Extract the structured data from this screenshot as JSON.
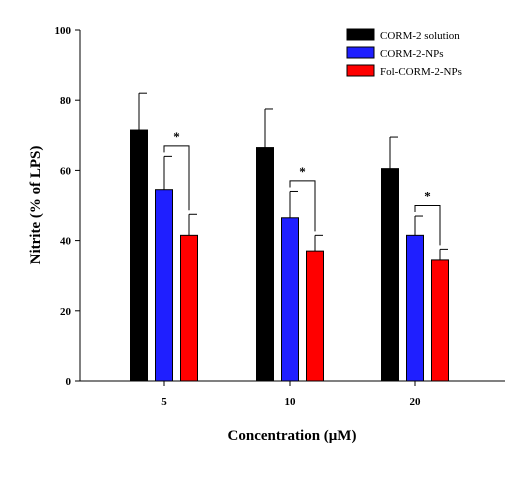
{
  "chart_data": {
    "type": "bar",
    "xlabel": "Concentration (μM)",
    "ylabel": "Nitrite (% of LPS)",
    "ylim": [
      0,
      100
    ],
    "yticks": [
      0,
      20,
      40,
      60,
      80,
      100
    ],
    "categories": [
      "5",
      "10",
      "20"
    ],
    "grid": false,
    "legend_position": "top-right",
    "series": [
      {
        "name": "CORM-2 solution",
        "color": "#000000",
        "values": [
          71.5,
          66.5,
          60.5
        ],
        "errors": [
          10.5,
          11.0,
          9.0
        ]
      },
      {
        "name": "CORM-2-NPs",
        "color": "#1f1fff",
        "values": [
          54.5,
          46.5,
          41.5
        ],
        "errors": [
          9.5,
          7.5,
          5.5
        ]
      },
      {
        "name": "Fol-CORM-2-NPs",
        "color": "#ff0000",
        "values": [
          41.5,
          37.0,
          34.5
        ],
        "errors": [
          6.0,
          4.5,
          3.0
        ]
      }
    ],
    "annotations": [
      {
        "category": "5",
        "from_series": 1,
        "to_series": 2,
        "label": "*"
      },
      {
        "category": "10",
        "from_series": 1,
        "to_series": 2,
        "label": "*"
      },
      {
        "category": "20",
        "from_series": 1,
        "to_series": 2,
        "label": "*"
      }
    ]
  }
}
